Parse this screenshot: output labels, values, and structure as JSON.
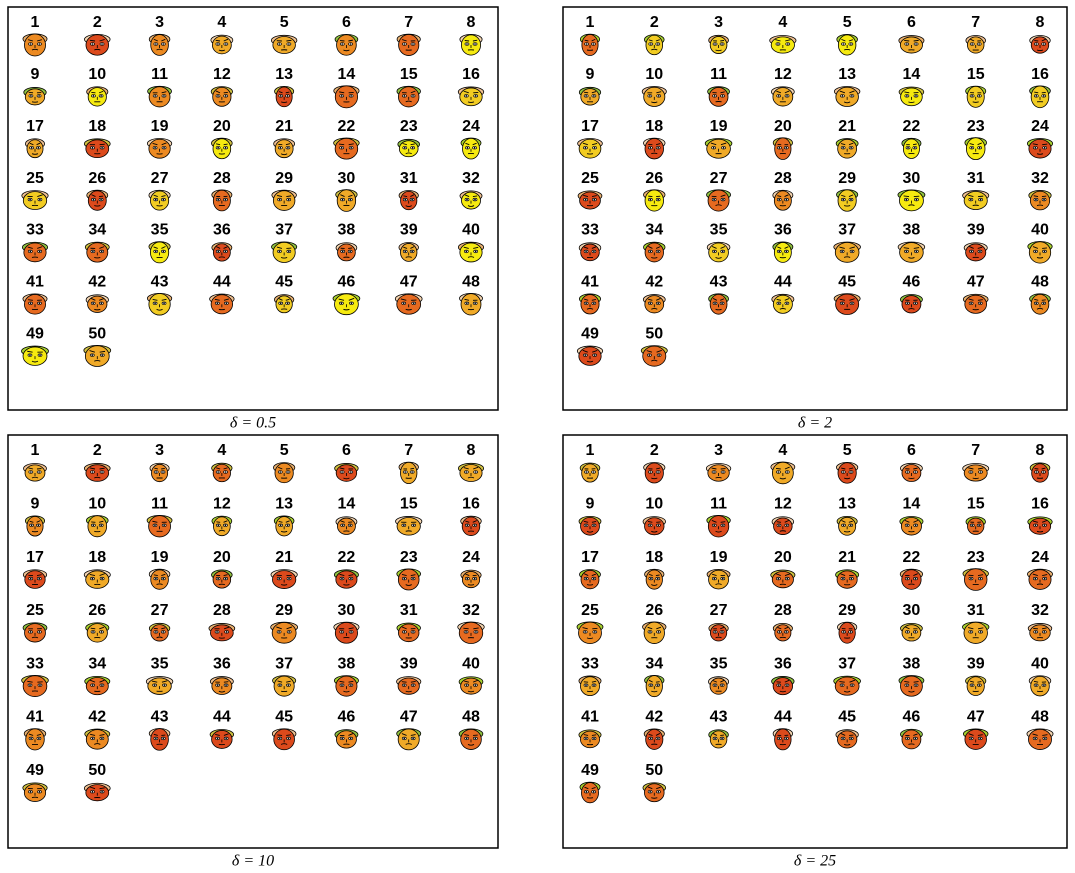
{
  "panels": [
    {
      "caption": "δ = 0.5",
      "faces": [
        "1",
        "2",
        "3",
        "4",
        "5",
        "6",
        "7",
        "8",
        "9",
        "10",
        "11",
        "12",
        "13",
        "14",
        "15",
        "16",
        "17",
        "18",
        "19",
        "20",
        "21",
        "22",
        "23",
        "24",
        "25",
        "26",
        "27",
        "28",
        "29",
        "30",
        "31",
        "32",
        "33",
        "34",
        "35",
        "36",
        "37",
        "38",
        "39",
        "40",
        "41",
        "42",
        "43",
        "44",
        "45",
        "46",
        "47",
        "48",
        "49",
        "50"
      ]
    },
    {
      "caption": "δ = 2",
      "faces": [
        "1",
        "2",
        "3",
        "4",
        "5",
        "6",
        "7",
        "8",
        "9",
        "10",
        "11",
        "12",
        "13",
        "14",
        "15",
        "16",
        "17",
        "18",
        "19",
        "20",
        "21",
        "22",
        "23",
        "24",
        "25",
        "26",
        "27",
        "28",
        "29",
        "30",
        "31",
        "32",
        "33",
        "34",
        "35",
        "36",
        "37",
        "38",
        "39",
        "40",
        "41",
        "42",
        "43",
        "44",
        "45",
        "46",
        "47",
        "48",
        "49",
        "50"
      ]
    },
    {
      "caption": "δ = 10",
      "faces": [
        "1",
        "2",
        "3",
        "4",
        "5",
        "6",
        "7",
        "8",
        "9",
        "10",
        "11",
        "12",
        "13",
        "14",
        "15",
        "16",
        "17",
        "18",
        "19",
        "20",
        "21",
        "22",
        "23",
        "24",
        "25",
        "26",
        "27",
        "28",
        "29",
        "30",
        "31",
        "32",
        "33",
        "34",
        "35",
        "36",
        "37",
        "38",
        "39",
        "40",
        "41",
        "42",
        "43",
        "44",
        "45",
        "46",
        "47",
        "48",
        "49",
        "50"
      ]
    },
    {
      "caption": "δ = 25",
      "faces": [
        "1",
        "2",
        "3",
        "4",
        "5",
        "6",
        "7",
        "8",
        "9",
        "10",
        "11",
        "12",
        "13",
        "14",
        "15",
        "16",
        "17",
        "18",
        "19",
        "20",
        "21",
        "22",
        "23",
        "24",
        "25",
        "26",
        "27",
        "28",
        "29",
        "30",
        "31",
        "32",
        "33",
        "34",
        "35",
        "36",
        "37",
        "38",
        "39",
        "40",
        "41",
        "42",
        "43",
        "44",
        "45",
        "46",
        "47",
        "48",
        "49",
        "50"
      ]
    }
  ]
}
